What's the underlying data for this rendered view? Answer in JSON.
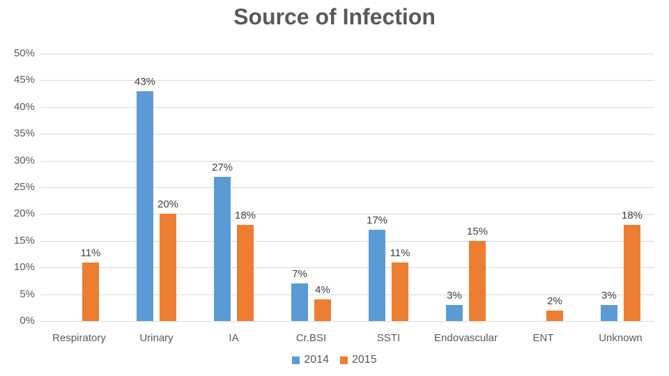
{
  "chart_data": {
    "type": "bar",
    "title": "Source of Infection",
    "categories": [
      "Respiratory",
      "Urinary",
      "IA",
      "Cr.BSI",
      "SSTI",
      "Endovascular",
      "ENT",
      "Unknown"
    ],
    "series": [
      {
        "name": "2014",
        "color": "#5B9BD5",
        "values": [
          null,
          43,
          27,
          7,
          17,
          3,
          null,
          3
        ],
        "labels": [
          null,
          "43%",
          "27%",
          "7%",
          "17%",
          "3%",
          null,
          "3%"
        ]
      },
      {
        "name": "2015",
        "color": "#ED7D31",
        "values": [
          11,
          20,
          18,
          4,
          11,
          15,
          2,
          18
        ],
        "labels": [
          "11%",
          "20%",
          "18%",
          "4%",
          "11%",
          "15%",
          "2%",
          "18%"
        ]
      }
    ],
    "y_axis": {
      "min": 0,
      "max": 50,
      "step": 5,
      "tick_labels": [
        "50%",
        "45%",
        "40%",
        "35%",
        "30%",
        "25%",
        "20%",
        "15%",
        "10%",
        "5%",
        "0%"
      ]
    },
    "xlabel": "",
    "ylabel": "",
    "legend": {
      "position": "bottom",
      "entries": [
        "2014",
        "2015"
      ]
    },
    "grid": true,
    "styles": {
      "background": "#FFFFFF",
      "title_color": "#595959",
      "axis_text_color": "#595959",
      "data_label_color": "#404040",
      "gridline_color": "#D9D9D9"
    }
  }
}
